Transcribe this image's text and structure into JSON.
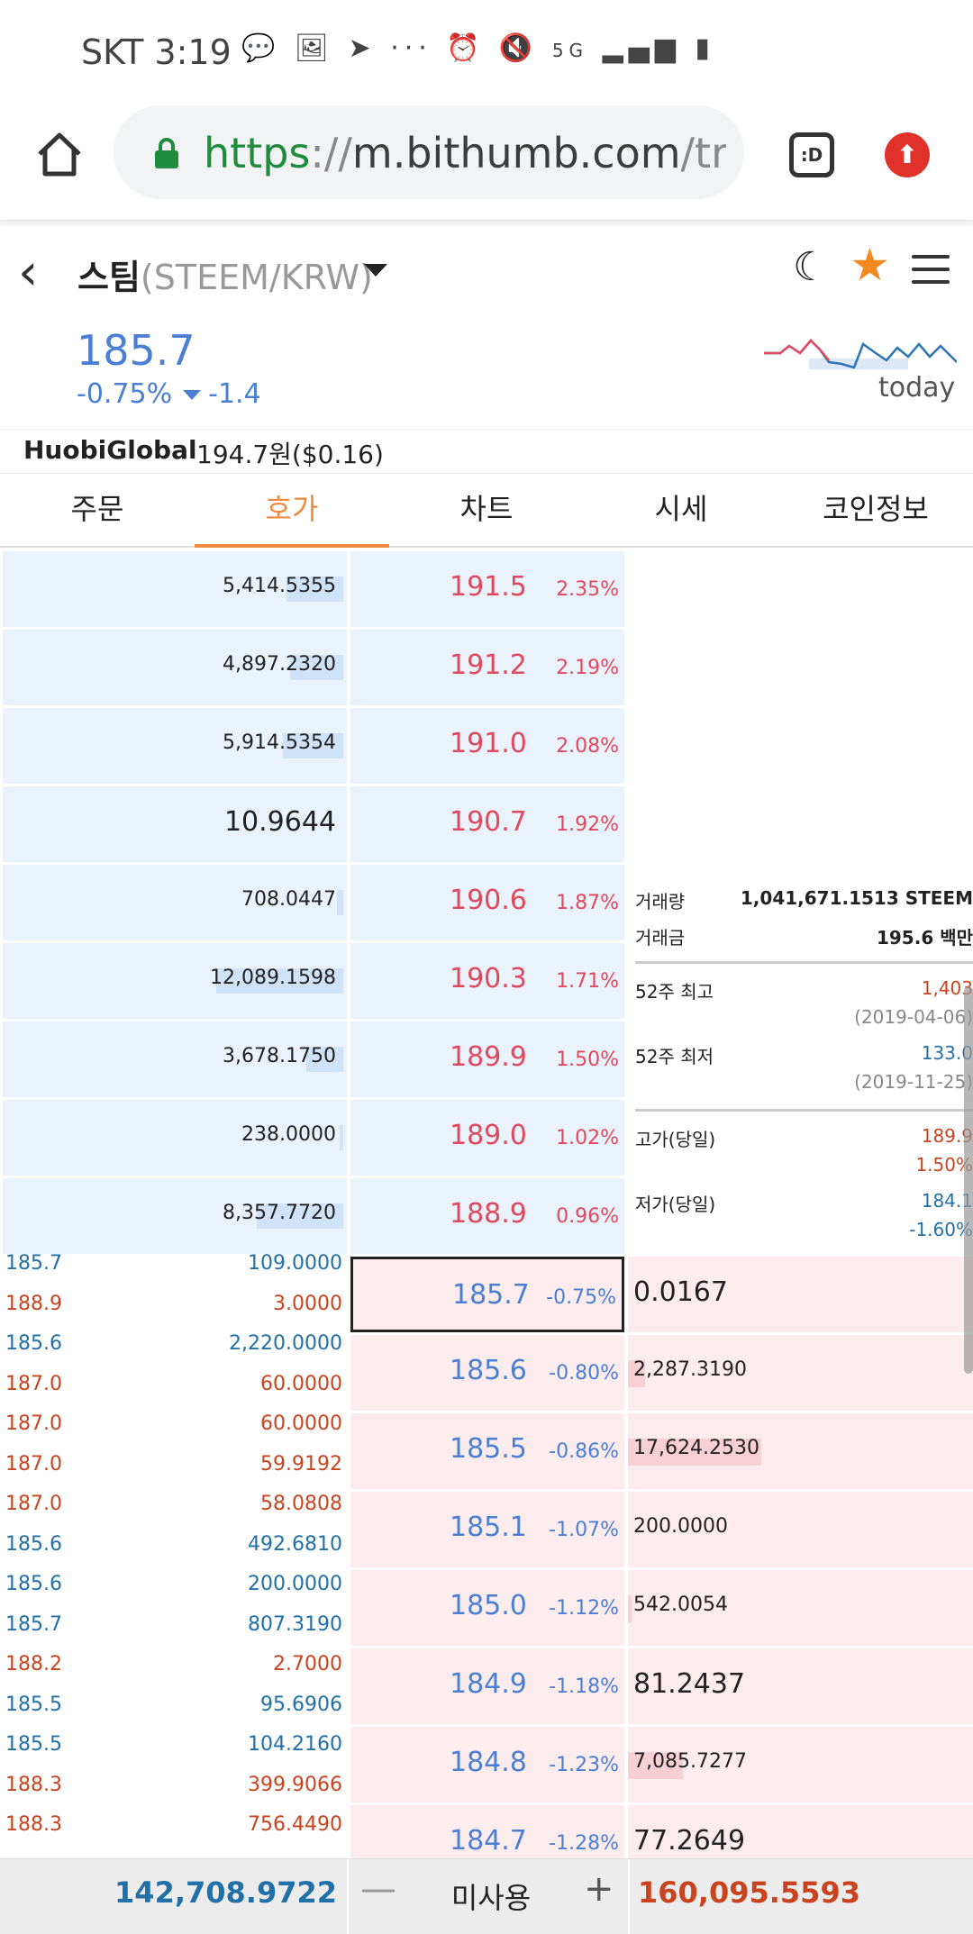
{
  "status_bar": {
    "carrier": "SKT",
    "time": "3:19",
    "network": "5G"
  },
  "browser": {
    "url_scheme": "https",
    "url_sep": "://",
    "url_host": "m.bithumb.com",
    "url_path": "/trad",
    "tab_icon_label": ":D"
  },
  "coin": {
    "name": "스팀",
    "pair": "(STEEM/KRW)",
    "price": "185.7",
    "change_pct": "-0.75%",
    "change_abs": "-1.4",
    "spark_label": "today",
    "huobi_label": "HuobiGlobal",
    "huobi_value": "194.7원($0.16)"
  },
  "tabs": [
    "주문",
    "호가",
    "차트",
    "시세",
    "코인정보"
  ],
  "active_tab": 1,
  "asks": [
    {
      "qty": "5,414.5355",
      "price": "191.5",
      "pct": "2.35%",
      "fill": 0.17
    },
    {
      "qty": "4,897.2320",
      "price": "191.2",
      "pct": "2.19%",
      "fill": 0.16
    },
    {
      "qty": "5,914.5354",
      "price": "191.0",
      "pct": "2.08%",
      "fill": 0.18
    },
    {
      "qty": "10.9644",
      "price": "190.7",
      "pct": "1.92%",
      "fill": 0.0,
      "big": true
    },
    {
      "qty": "708.0447",
      "price": "190.6",
      "pct": "1.87%",
      "fill": 0.02
    },
    {
      "qty": "12,089.1598",
      "price": "190.3",
      "pct": "1.71%",
      "fill": 0.38
    },
    {
      "qty": "3,678.1750",
      "price": "189.9",
      "pct": "1.50%",
      "fill": 0.11
    },
    {
      "qty": "238.0000",
      "price": "189.0",
      "pct": "1.02%",
      "fill": 0.01
    },
    {
      "qty": "8,357.7720",
      "price": "188.9",
      "pct": "0.96%",
      "fill": 0.26
    }
  ],
  "bids": [
    {
      "price": "185.7",
      "pct": "-0.75%",
      "qty": "0.0167",
      "fill": 0.0,
      "big": true
    },
    {
      "price": "185.6",
      "pct": "-0.80%",
      "qty": "2,287.3190",
      "fill": 0.05
    },
    {
      "price": "185.5",
      "pct": "-0.86%",
      "qty": "17,624.2530",
      "fill": 0.39
    },
    {
      "price": "185.1",
      "pct": "-1.07%",
      "qty": "200.0000",
      "fill": 0.0
    },
    {
      "price": "185.0",
      "pct": "-1.12%",
      "qty": "542.0054",
      "fill": 0.01
    },
    {
      "price": "184.9",
      "pct": "-1.18%",
      "qty": "81.2437",
      "fill": 0.0,
      "big": true
    },
    {
      "price": "184.8",
      "pct": "-1.23%",
      "qty": "7,085.7277",
      "fill": 0.16
    },
    {
      "price": "184.7",
      "pct": "-1.28%",
      "qty": "77.2649",
      "fill": 0.0,
      "big": true
    }
  ],
  "stats": {
    "volume_label": "거래량",
    "volume_value": "1,041,671.1513 STEEM",
    "amount_label": "거래금",
    "amount_value": "195.6 백만",
    "high52_label": "52주 최고",
    "high52_value": "1,403",
    "high52_date": "(2019-04-06)",
    "low52_label": "52주 최저",
    "low52_value": "133.0",
    "low52_date": "(2019-11-25)",
    "high_day_label": "고가(당일)",
    "high_day_value": "189.9",
    "high_day_pct": "1.50%",
    "low_day_label": "저가(당일)",
    "low_day_value": "184.1",
    "low_day_pct": "-1.60%"
  },
  "trades": [
    {
      "price": "185.7",
      "qty": "109.0000",
      "dir": "dn"
    },
    {
      "price": "188.9",
      "qty": "3.0000",
      "dir": "up"
    },
    {
      "price": "185.6",
      "qty": "2,220.0000",
      "dir": "dn"
    },
    {
      "price": "187.0",
      "qty": "60.0000",
      "dir": "up"
    },
    {
      "price": "187.0",
      "qty": "60.0000",
      "dir": "up"
    },
    {
      "price": "187.0",
      "qty": "59.9192",
      "dir": "up"
    },
    {
      "price": "187.0",
      "qty": "58.0808",
      "dir": "up"
    },
    {
      "price": "185.6",
      "qty": "492.6810",
      "dir": "dn"
    },
    {
      "price": "185.6",
      "qty": "200.0000",
      "dir": "dn"
    },
    {
      "price": "185.7",
      "qty": "807.3190",
      "dir": "dn"
    },
    {
      "price": "188.2",
      "qty": "2.7000",
      "dir": "up"
    },
    {
      "price": "185.5",
      "qty": "95.6906",
      "dir": "dn"
    },
    {
      "price": "185.5",
      "qty": "104.2160",
      "dir": "dn"
    },
    {
      "price": "188.3",
      "qty": "399.9066",
      "dir": "up"
    },
    {
      "price": "188.3",
      "qty": "756.4490",
      "dir": "up"
    }
  ],
  "bottom": {
    "ask_total": "142,708.9722",
    "mode_label": "미사용",
    "minus": "—",
    "plus": "+",
    "bid_total": "160,095.5593"
  },
  "colors": {
    "accent": "#f08a3c",
    "rise": "#e0485d",
    "fall": "#4a7fd4",
    "ask_bg": "#eaf3fc",
    "bid_bg": "#fdecee"
  }
}
